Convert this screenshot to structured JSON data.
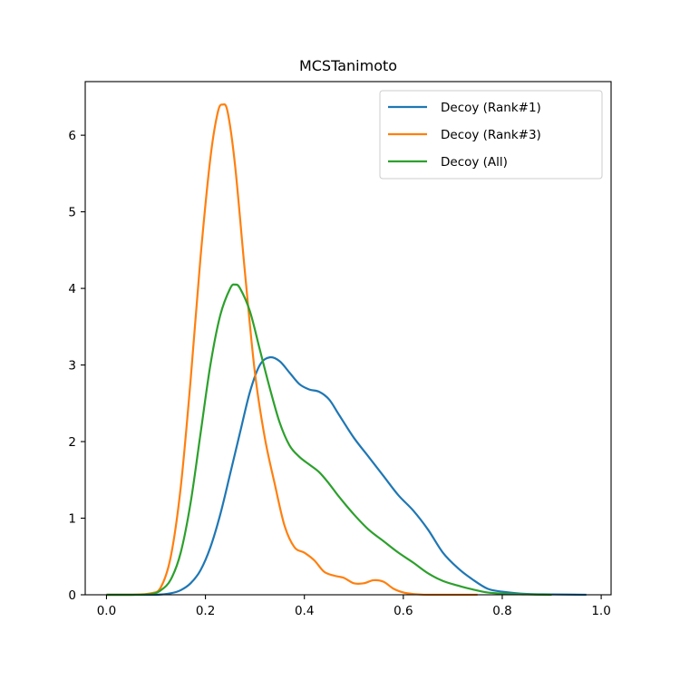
{
  "chart_data": {
    "type": "line",
    "title": "MCSTanimoto",
    "xlabel": "",
    "ylabel": "",
    "xlim": [
      -0.043,
      1.02
    ],
    "ylim": [
      0,
      6.7
    ],
    "xticks": [
      0.0,
      0.2,
      0.4,
      0.6,
      0.8,
      1.0
    ],
    "xtick_labels": [
      "0.0",
      "0.2",
      "0.4",
      "0.6",
      "0.8",
      "1.0"
    ],
    "yticks": [
      0,
      1,
      2,
      3,
      4,
      5,
      6
    ],
    "ytick_labels": [
      "0",
      "1",
      "2",
      "3",
      "4",
      "5",
      "6"
    ],
    "grid": false,
    "legend_position": "top-right",
    "series": [
      {
        "name": "Decoy (Rank#1)",
        "color": "#1f77b4",
        "x": [
          0.0,
          0.05,
          0.1,
          0.13,
          0.15,
          0.17,
          0.19,
          0.21,
          0.23,
          0.25,
          0.27,
          0.29,
          0.31,
          0.33,
          0.35,
          0.37,
          0.39,
          0.41,
          0.43,
          0.45,
          0.47,
          0.5,
          0.53,
          0.56,
          0.59,
          0.62,
          0.65,
          0.68,
          0.71,
          0.74,
          0.77,
          0.8,
          0.85,
          0.9,
          0.97
        ],
        "y": [
          0.0,
          0.0,
          0.0,
          0.02,
          0.06,
          0.15,
          0.32,
          0.62,
          1.05,
          1.58,
          2.12,
          2.65,
          3.0,
          3.1,
          3.05,
          2.9,
          2.75,
          2.68,
          2.65,
          2.55,
          2.35,
          2.05,
          1.8,
          1.55,
          1.3,
          1.1,
          0.85,
          0.55,
          0.35,
          0.2,
          0.08,
          0.04,
          0.01,
          0.005,
          0.0
        ]
      },
      {
        "name": "Decoy (Rank#3)",
        "color": "#ff7f0e",
        "x": [
          0.0,
          0.05,
          0.09,
          0.11,
          0.13,
          0.15,
          0.17,
          0.19,
          0.21,
          0.225,
          0.235,
          0.245,
          0.26,
          0.28,
          0.3,
          0.32,
          0.34,
          0.36,
          0.38,
          0.4,
          0.42,
          0.44,
          0.46,
          0.48,
          0.5,
          0.52,
          0.54,
          0.56,
          0.58,
          0.6,
          0.62,
          0.65,
          0.7,
          0.75
        ],
        "y": [
          0.0,
          0.0,
          0.02,
          0.1,
          0.5,
          1.4,
          2.8,
          4.4,
          5.7,
          6.3,
          6.4,
          6.3,
          5.6,
          4.2,
          2.9,
          2.05,
          1.45,
          0.9,
          0.62,
          0.55,
          0.45,
          0.3,
          0.25,
          0.22,
          0.15,
          0.15,
          0.19,
          0.17,
          0.08,
          0.03,
          0.01,
          0.0,
          0.0,
          0.0
        ]
      },
      {
        "name": "Decoy (All)",
        "color": "#2ca02c",
        "x": [
          0.0,
          0.05,
          0.09,
          0.11,
          0.13,
          0.15,
          0.17,
          0.19,
          0.21,
          0.23,
          0.25,
          0.26,
          0.27,
          0.29,
          0.31,
          0.33,
          0.35,
          0.37,
          0.39,
          0.41,
          0.43,
          0.45,
          0.47,
          0.5,
          0.53,
          0.56,
          0.59,
          0.62,
          0.65,
          0.68,
          0.71,
          0.74,
          0.77,
          0.8,
          0.85,
          0.9
        ],
        "y": [
          0.0,
          0.0,
          0.01,
          0.06,
          0.2,
          0.55,
          1.2,
          2.1,
          3.0,
          3.65,
          4.0,
          4.05,
          4.0,
          3.7,
          3.2,
          2.7,
          2.25,
          1.95,
          1.8,
          1.7,
          1.6,
          1.45,
          1.28,
          1.05,
          0.85,
          0.7,
          0.55,
          0.42,
          0.28,
          0.18,
          0.12,
          0.07,
          0.03,
          0.015,
          0.005,
          0.0
        ]
      }
    ]
  }
}
